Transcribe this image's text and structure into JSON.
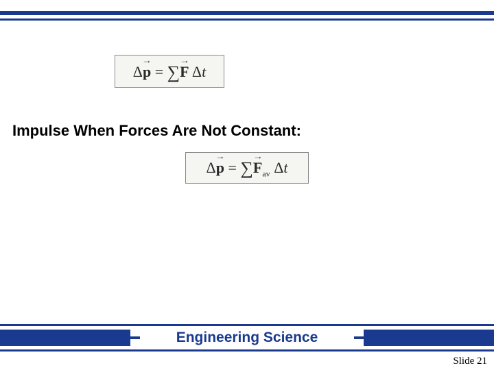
{
  "theme": {
    "bar_color": "#1a3a8f",
    "background": "#ffffff",
    "eq_bg": "#f5f5f2",
    "eq_border": "#888888",
    "text_color": "#000000",
    "eq_text_color": "#2a2a2a"
  },
  "equations": {
    "eq1": {
      "lhs_delta": "Δ",
      "lhs_var": "p",
      "eq": " = ",
      "sum": "∑",
      "rhs_var": "F",
      "rhs_tail_space": " ",
      "dt_delta": "Δ",
      "dt_var": "t"
    },
    "eq2": {
      "lhs_delta": "Δ",
      "lhs_var": "p",
      "eq": " = ",
      "sum": "∑",
      "rhs_var": "F",
      "rhs_sub": "av",
      "rhs_tail_space": " ",
      "dt_delta": "Δ",
      "dt_var": "t"
    }
  },
  "heading": "Impulse When Forces Are Not Constant:",
  "footer": {
    "label": "Engineering Science",
    "slide_prefix": "Slide ",
    "slide_number": "21"
  }
}
